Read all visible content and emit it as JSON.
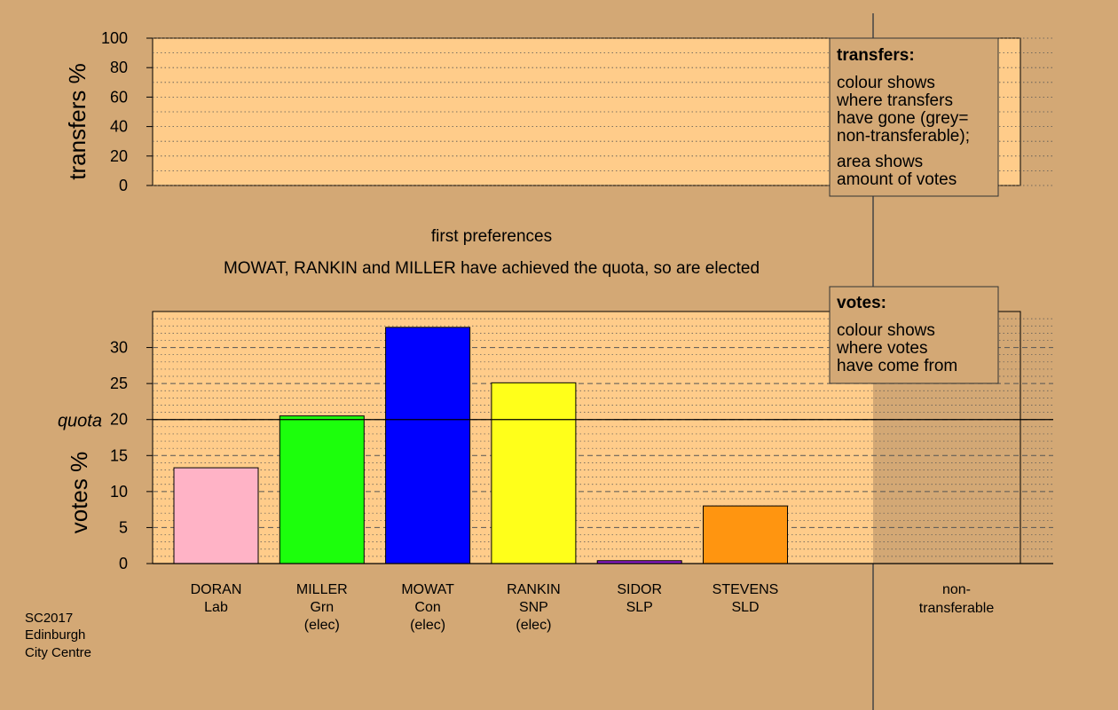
{
  "colors": {
    "background": "#d3a875",
    "plot_area": "#ffcc8a",
    "ntf_area": "#d3a875"
  },
  "top_panel": {
    "ylabel": "transfers %",
    "ticks": [
      "0",
      "20",
      "40",
      "60",
      "80",
      "100"
    ]
  },
  "middle": {
    "line1": "first preferences",
    "line2": "MOWAT, RANKIN and MILLER have achieved the quota, so are elected"
  },
  "legend_transfers": {
    "title": "transfers:",
    "lines": [
      "colour shows",
      "where transfers",
      "have gone (grey=",
      "non-transferable);"
    ],
    "lines2": [
      "area shows",
      "amount of votes"
    ]
  },
  "legend_votes": {
    "title": "votes:",
    "lines": [
      "colour shows",
      "where votes",
      "have come from"
    ]
  },
  "bottom_panel": {
    "ylabel": "votes %",
    "quota_label": "quota",
    "ticks": [
      "0",
      "5",
      "10",
      "15",
      "20",
      "25",
      "30"
    ]
  },
  "candidates": [
    {
      "name": "DORAN",
      "party": "Lab",
      "status": ""
    },
    {
      "name": "MILLER",
      "party": "Grn",
      "status": "(elec)"
    },
    {
      "name": "MOWAT",
      "party": "Con",
      "status": "(elec)"
    },
    {
      "name": "RANKIN",
      "party": "SNP",
      "status": "(elec)"
    },
    {
      "name": "SIDOR",
      "party": "SLP",
      "status": ""
    },
    {
      "name": "STEVENS",
      "party": "SLD",
      "status": ""
    }
  ],
  "ntf": {
    "line1": "non-",
    "line2": "transferable"
  },
  "caption": [
    "SC2017",
    "Edinburgh",
    "City Centre"
  ],
  "chart_data": [
    {
      "type": "bar",
      "ylabel": "transfers %",
      "ylim": [
        0,
        100
      ],
      "yticks": [
        0,
        20,
        40,
        60,
        80,
        100
      ],
      "categories": [],
      "values": []
    },
    {
      "type": "bar",
      "ylabel": "votes %",
      "ylim": [
        0,
        35
      ],
      "yticks": [
        0,
        5,
        10,
        15,
        20,
        25,
        30
      ],
      "quota": 20,
      "categories": [
        "DORAN Lab",
        "MILLER Grn (elec)",
        "MOWAT Con (elec)",
        "RANKIN SNP (elec)",
        "SIDOR SLP",
        "STEVENS SLD"
      ],
      "values": [
        13.3,
        20.5,
        32.8,
        25.1,
        0.4,
        8.0
      ],
      "colors": [
        "#ffb3c6",
        "#1cff0c",
        "#0000ff",
        "#ffff1a",
        "#8a19c9",
        "#ff9510"
      ]
    }
  ]
}
